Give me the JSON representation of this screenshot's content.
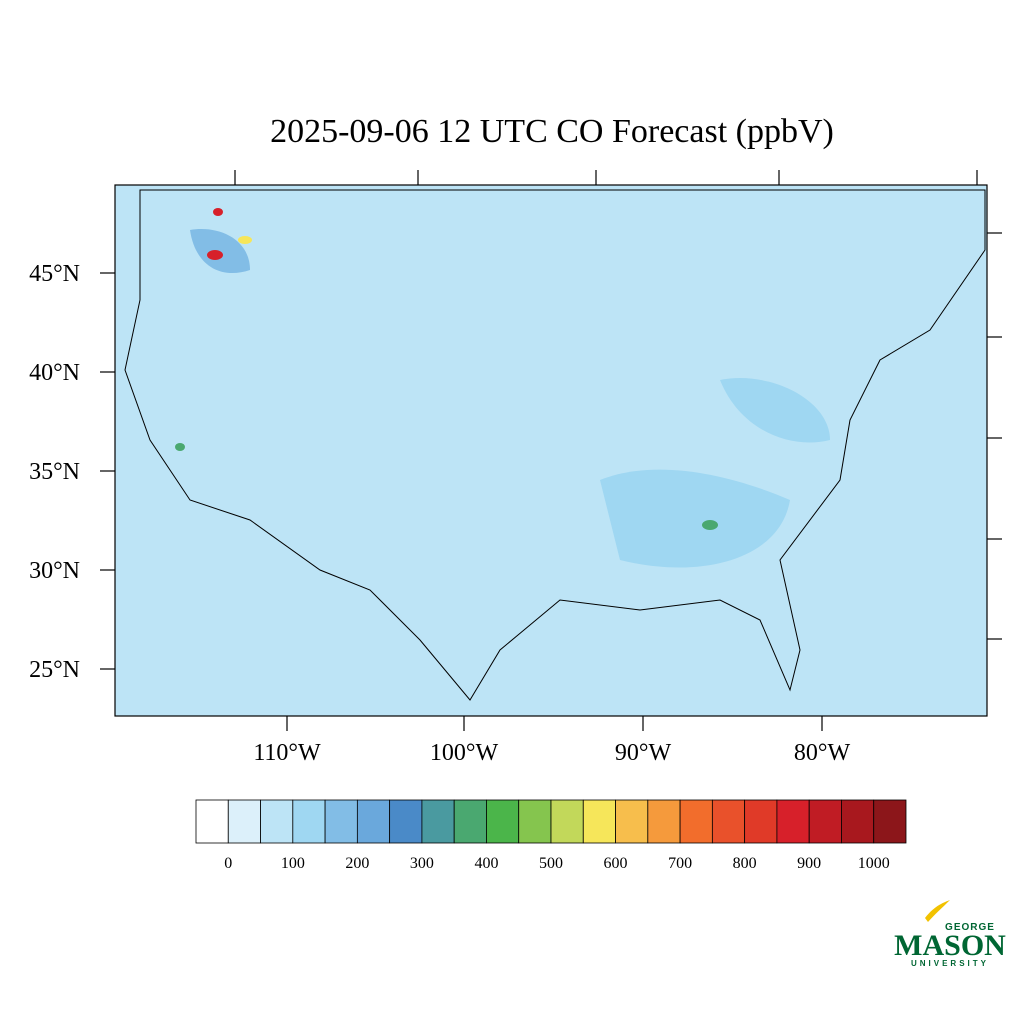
{
  "title": "2025-09-06 12 UTC CO Forecast (ppbV)",
  "lat_labels": [
    "45°N",
    "40°N",
    "35°N",
    "30°N",
    "25°N"
  ],
  "lon_labels": [
    "110°W",
    "100°W",
    "90°W",
    "80°W"
  ],
  "colorbar": {
    "labels": [
      "0",
      "100",
      "200",
      "300",
      "400",
      "500",
      "600",
      "700",
      "800",
      "900",
      "1000"
    ],
    "colors": [
      "#ffffff",
      "#dcf0fa",
      "#bde4f6",
      "#9fd7f2",
      "#82bde6",
      "#6aa8dc",
      "#4a8ac8",
      "#4a9aa0",
      "#4aa870",
      "#4bb54a",
      "#85c54e",
      "#c2d85a",
      "#f6e65a",
      "#f7be4c",
      "#f59a3c",
      "#f26d2c",
      "#e9512b",
      "#e03a28",
      "#d7202a",
      "#c01c24",
      "#a8181e",
      "#8c161a"
    ]
  },
  "logo": {
    "top": "GEORGE",
    "name": "MASON",
    "bottom": "UNIVERSITY"
  }
}
